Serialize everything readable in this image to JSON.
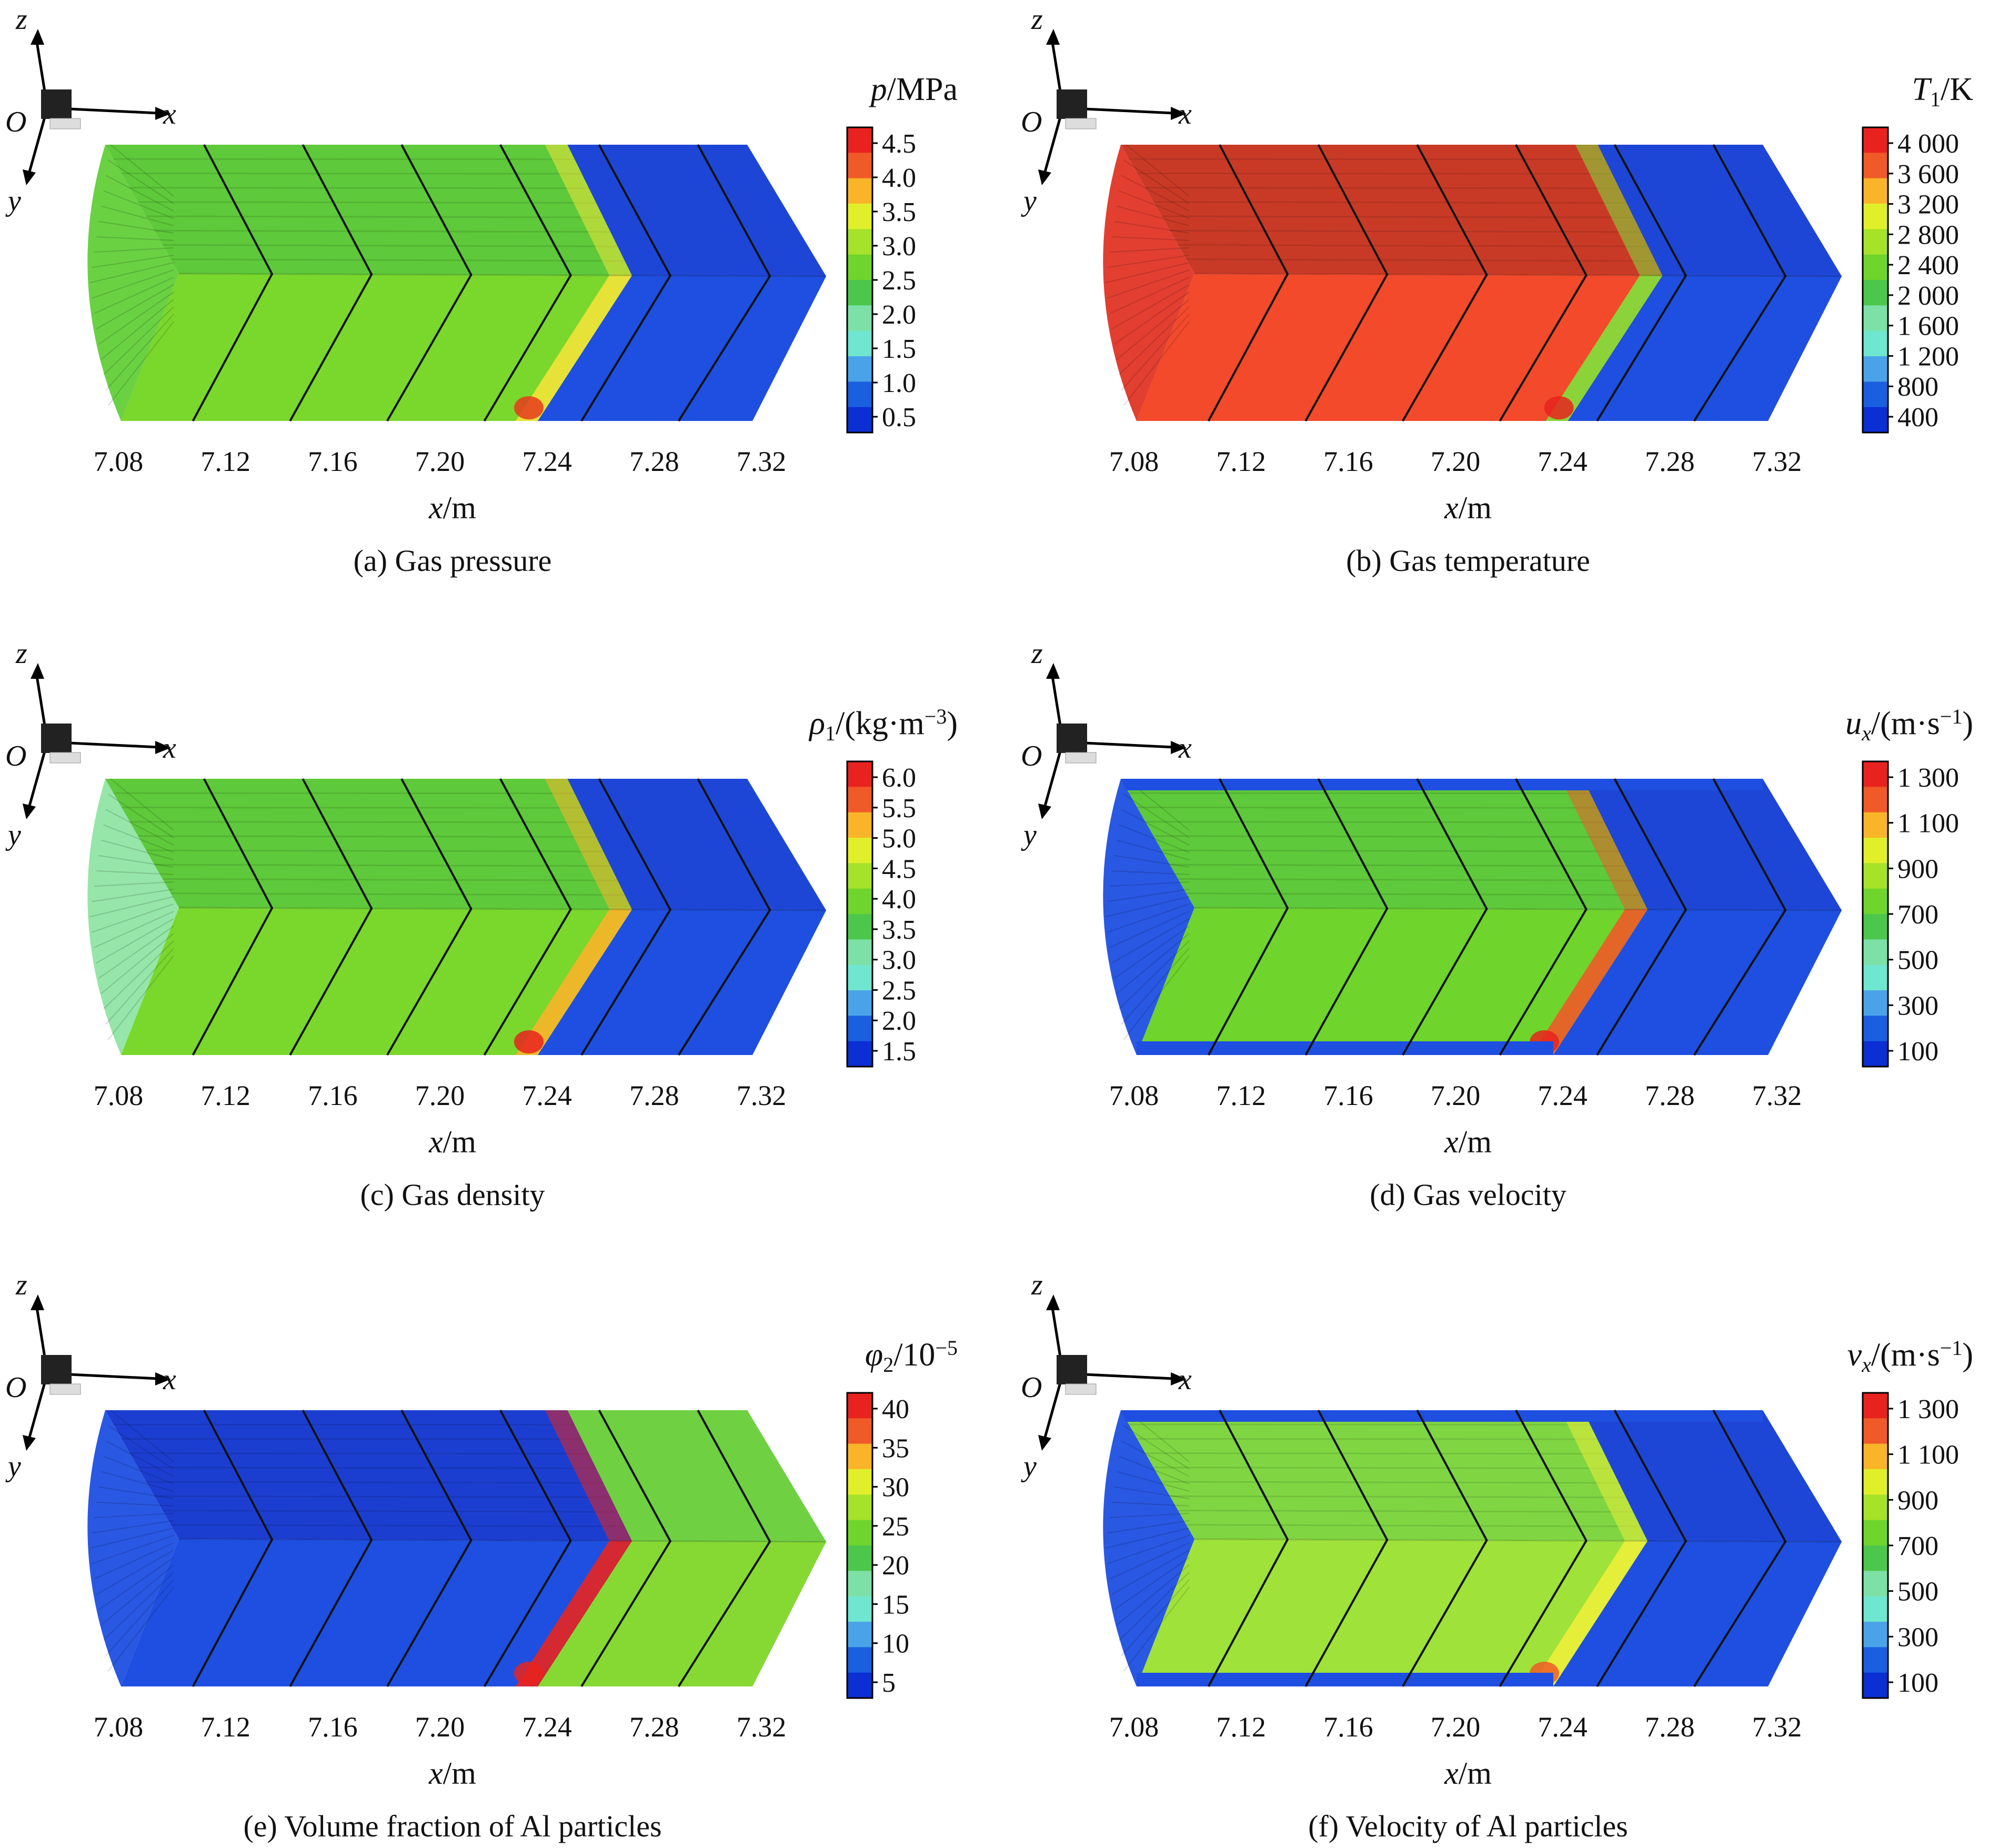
{
  "chart_data": [
    {
      "type": "heatmap",
      "id": "a",
      "caption": "(a) Gas pressure",
      "legend_title": "p/MPa",
      "legend_title_parts": [
        {
          "t": "p",
          "italic": true
        },
        {
          "t": "/MPa"
        }
      ],
      "legend_ticks": [
        "4.5",
        "4.0",
        "3.5",
        "3.0",
        "2.5",
        "2.0",
        "1.5",
        "1.0",
        "0.5"
      ],
      "legend_colors": [
        "#e8231f",
        "#f05a28",
        "#f9b42a",
        "#e1ef2b",
        "#a6e22a",
        "#6fd42c",
        "#4cc74b",
        "#7de0a6",
        "#6fe6cf",
        "#4aa3e8",
        "#1a5fe0",
        "#0b2fd2"
      ],
      "x_ticks": [
        "7.08",
        "7.12",
        "7.16",
        "7.20",
        "7.24",
        "7.28",
        "7.32"
      ],
      "xlabel": "x/m",
      "field": {
        "base": "#7ad72c",
        "top": "#5ec93a",
        "front_x": 7.262,
        "post": "#1e4fe0",
        "post_top": "#1e46d6",
        "band": "#f2e33a",
        "spot": "#e83a1f",
        "left_tint": "#62cf39"
      }
    },
    {
      "type": "heatmap",
      "id": "b",
      "caption": "(b) Gas temperature",
      "legend_title": "T1/K",
      "legend_title_parts": [
        {
          "t": "T",
          "italic": true
        },
        {
          "t": "1",
          "sub": true
        },
        {
          "t": "/K"
        }
      ],
      "legend_ticks": [
        "4 000",
        "3 600",
        "3 200",
        "2 800",
        "2 400",
        "2 000",
        "1 600",
        "1 200",
        "800",
        "400"
      ],
      "legend_colors": [
        "#e8231f",
        "#f05a28",
        "#f9b42a",
        "#e1ef2b",
        "#a6e22a",
        "#6fd42c",
        "#4cc74b",
        "#7de0a6",
        "#6fe6cf",
        "#4aa3e8",
        "#1a5fe0",
        "#0b2fd2"
      ],
      "x_ticks": [
        "7.08",
        "7.12",
        "7.16",
        "7.20",
        "7.24",
        "7.28",
        "7.32"
      ],
      "xlabel": "x/m",
      "field": {
        "base": "#f24a2b",
        "top": "#c93a26",
        "front_x": 7.268,
        "post": "#1e4fe0",
        "post_top": "#1e46d6",
        "band": "#7fe23a",
        "spot": "#e8231f",
        "left_tint": "#e03526"
      }
    },
    {
      "type": "heatmap",
      "id": "c",
      "caption": "(c) Gas density",
      "legend_title": "ρ1/(kg·m−3)",
      "legend_title_parts": [
        {
          "t": "ρ",
          "italic": true
        },
        {
          "t": "1",
          "sub": true
        },
        {
          "t": "/(kg·m"
        },
        {
          "t": "−3",
          "sup": true
        },
        {
          "t": ")"
        }
      ],
      "legend_ticks": [
        "6.0",
        "5.5",
        "5.0",
        "4.5",
        "4.0",
        "3.5",
        "3.0",
        "2.5",
        "2.0",
        "1.5"
      ],
      "legend_colors": [
        "#e8231f",
        "#f05a28",
        "#f9b42a",
        "#e1ef2b",
        "#a6e22a",
        "#6fd42c",
        "#4cc74b",
        "#7de0a6",
        "#6fe6cf",
        "#4aa3e8",
        "#1a5fe0",
        "#0b2fd2"
      ],
      "x_ticks": [
        "7.08",
        "7.12",
        "7.16",
        "7.20",
        "7.24",
        "7.28",
        "7.32"
      ],
      "xlabel": "x/m",
      "field": {
        "base": "#7ad72c",
        "top": "#5ec93a",
        "front_x": 7.262,
        "post": "#1e4fe0",
        "post_top": "#1e46d6",
        "band": "#f9b42a",
        "spot": "#e8231f",
        "left_tint": "#8fe5a3"
      }
    },
    {
      "type": "heatmap",
      "id": "d",
      "caption": "(d) Gas velocity",
      "legend_title": "ux/(m·s−1)",
      "legend_title_parts": [
        {
          "t": "u",
          "italic": true
        },
        {
          "t": "x",
          "sub": true,
          "italic": true
        },
        {
          "t": "/(m·s"
        },
        {
          "t": "−1",
          "sup": true
        },
        {
          "t": ")"
        }
      ],
      "legend_ticks": [
        "1 300",
        "1 100",
        "900",
        "700",
        "500",
        "300",
        "100"
      ],
      "legend_colors": [
        "#e8231f",
        "#f05a28",
        "#f9b42a",
        "#e1ef2b",
        "#a6e22a",
        "#6fd42c",
        "#4cc74b",
        "#7de0a6",
        "#6fe6cf",
        "#4aa3e8",
        "#1a5fe0",
        "#0b2fd2"
      ],
      "x_ticks": [
        "7.08",
        "7.12",
        "7.16",
        "7.20",
        "7.24",
        "7.28",
        "7.32"
      ],
      "xlabel": "x/m",
      "field": {
        "base": "#6fd42c",
        "top": "#5ec93a",
        "front_x": 7.262,
        "post": "#1e4fe0",
        "post_top": "#1e46d6",
        "band": "#f05a28",
        "spot": "#e8231f",
        "left_tint": "#1e4fe0",
        "border": "#1e4fe0"
      }
    },
    {
      "type": "heatmap",
      "id": "e",
      "caption": "(e) Volume fraction of Al particles",
      "legend_title": "φ2/10−5",
      "legend_title_parts": [
        {
          "t": "φ",
          "italic": true
        },
        {
          "t": "2",
          "sub": true
        },
        {
          "t": "/10"
        },
        {
          "t": "−5",
          "sup": true
        }
      ],
      "legend_ticks": [
        "40",
        "35",
        "30",
        "25",
        "20",
        "15",
        "10",
        "5"
      ],
      "legend_colors": [
        "#e8231f",
        "#f05a28",
        "#f9b42a",
        "#e1ef2b",
        "#a6e22a",
        "#6fd42c",
        "#4cc74b",
        "#7de0a6",
        "#6fe6cf",
        "#4aa3e8",
        "#1a5fe0",
        "#0b2fd2"
      ],
      "x_ticks": [
        "7.08",
        "7.12",
        "7.16",
        "7.20",
        "7.24",
        "7.28",
        "7.32"
      ],
      "xlabel": "x/m",
      "field": {
        "base": "#1e4fe0",
        "top": "#1c3ed0",
        "front_x": 7.262,
        "post": "#86d932",
        "post_top": "#6fd042",
        "band": "#e8231f",
        "spot": "#e8231f",
        "left_tint": "#1e4fe0"
      }
    },
    {
      "type": "heatmap",
      "id": "f",
      "caption": "(f) Velocity of Al particles",
      "legend_title": "vx/(m·s−1)",
      "legend_title_parts": [
        {
          "t": "v",
          "italic": true
        },
        {
          "t": "x",
          "sub": true,
          "italic": true
        },
        {
          "t": "/(m·s"
        },
        {
          "t": "−1",
          "sup": true
        },
        {
          "t": ")"
        }
      ],
      "legend_ticks": [
        "1 300",
        "1 100",
        "900",
        "700",
        "500",
        "300",
        "100"
      ],
      "legend_colors": [
        "#e8231f",
        "#f05a28",
        "#f9b42a",
        "#e1ef2b",
        "#a6e22a",
        "#6fd42c",
        "#4cc74b",
        "#7de0a6",
        "#6fe6cf",
        "#4aa3e8",
        "#1a5fe0",
        "#0b2fd2"
      ],
      "x_ticks": [
        "7.08",
        "7.12",
        "7.16",
        "7.20",
        "7.24",
        "7.28",
        "7.32"
      ],
      "xlabel": "x/m",
      "field": {
        "base": "#9ee23a",
        "top": "#7fd642",
        "front_x": 7.262,
        "post": "#1e4fe0",
        "post_top": "#1e46d6",
        "band": "#ecef3a",
        "spot": "#f05a28",
        "left_tint": "#1e4fe0",
        "border": "#1e4fe0"
      }
    }
  ],
  "axes_triad": {
    "z": "z",
    "x": "x",
    "y": "y",
    "origin": "O"
  }
}
